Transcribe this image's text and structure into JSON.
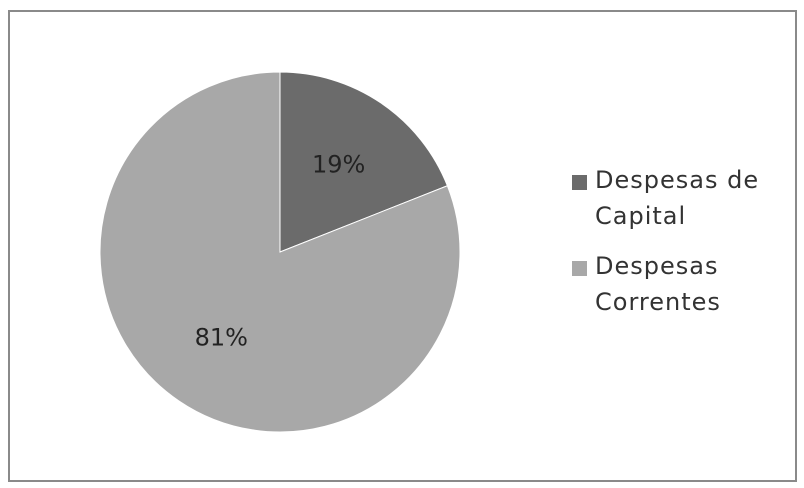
{
  "chart_data": {
    "type": "pie",
    "categories": [
      "Despesas de Capital",
      "Despesas Correntes"
    ],
    "values": [
      19,
      81
    ],
    "data_labels": [
      "19%",
      "81%"
    ],
    "colors": [
      "#6b6b6b",
      "#a8a8a8"
    ],
    "legend_position": "right"
  }
}
